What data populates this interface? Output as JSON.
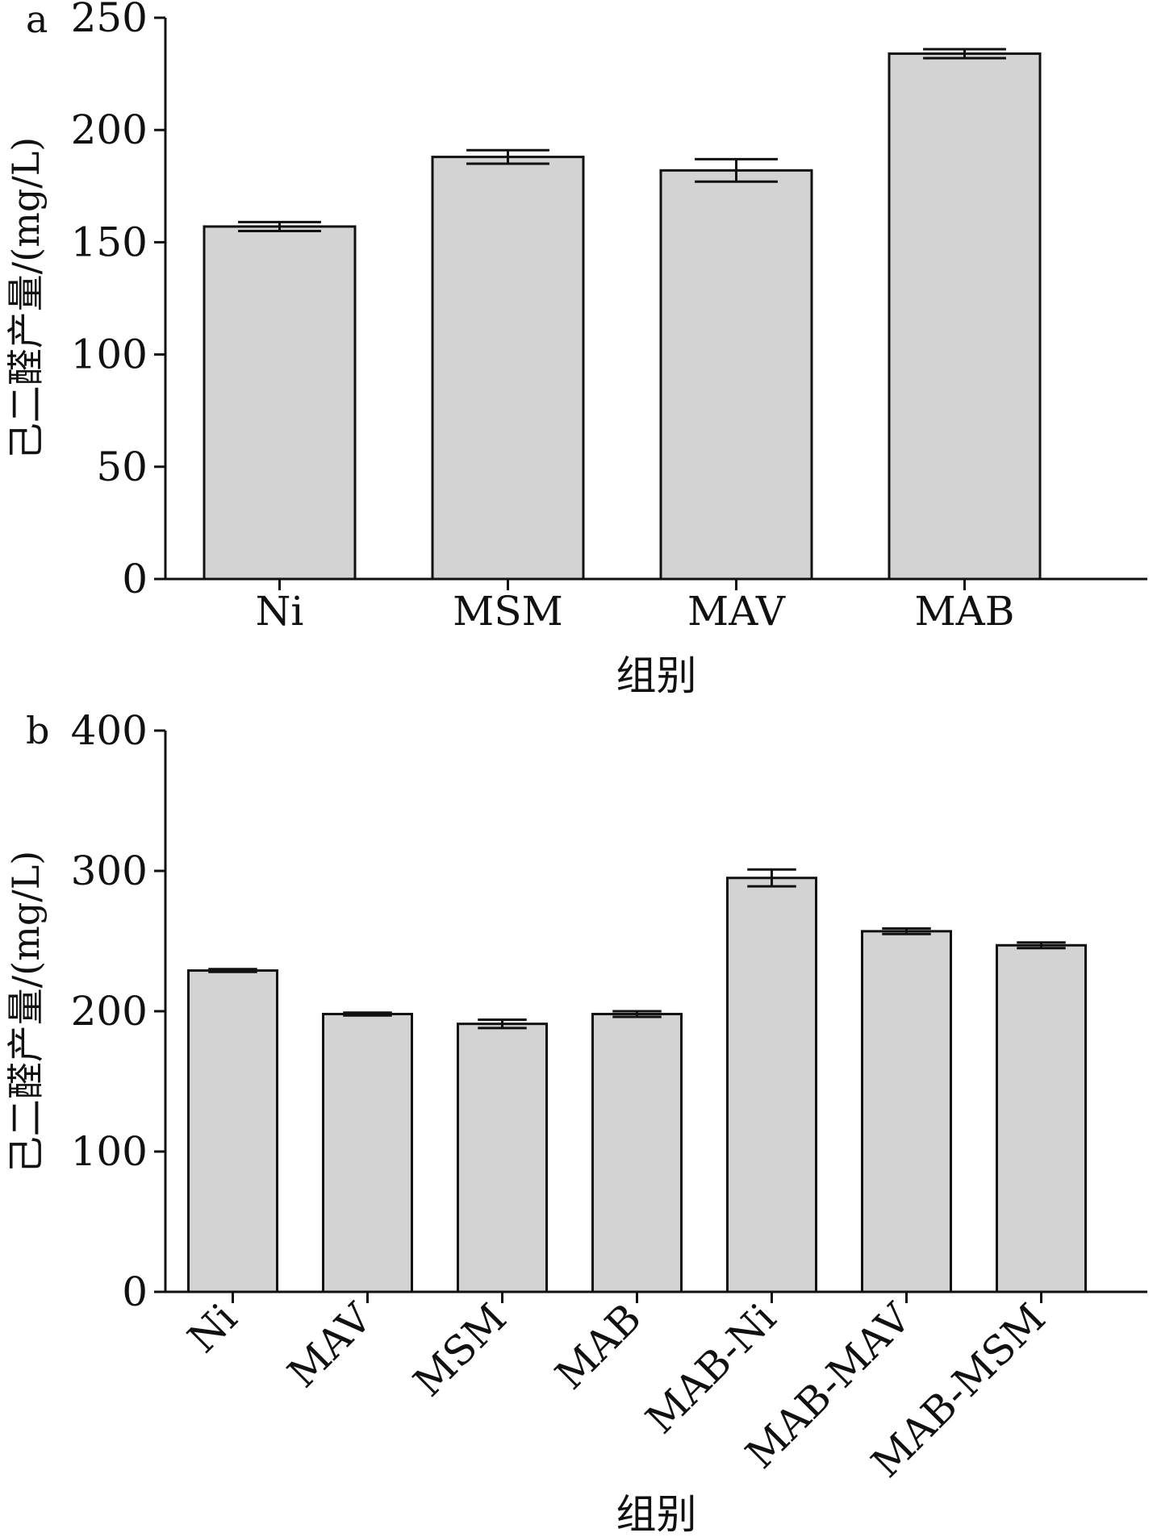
{
  "chart_data": [
    {
      "type": "bar",
      "panel_label": "a",
      "categories": [
        "Ni",
        "MSM",
        "MAV",
        "MAB"
      ],
      "values": [
        157,
        188,
        182,
        234
      ],
      "errors": [
        2,
        3,
        5,
        2
      ],
      "ylabel": "己二醛产量/(mg/L)",
      "xlabel": "组别",
      "ylim": [
        0,
        250
      ],
      "yticks": [
        "0",
        "50",
        "100",
        "150",
        "200",
        "250"
      ],
      "xtick_rotation": 0,
      "bar_color": "#d3d3d3",
      "grid": false
    },
    {
      "type": "bar",
      "panel_label": "b",
      "categories": [
        "Ni",
        "MAV",
        "MSM",
        "MAB",
        "MAB-Ni",
        "MAB-MAV",
        "MAB-MSM"
      ],
      "values": [
        229,
        198,
        191,
        198,
        295,
        257,
        247
      ],
      "errors": [
        1,
        1,
        3,
        2,
        6,
        2,
        2
      ],
      "ylabel": "己二醛产量/(mg/L)",
      "xlabel": "组别",
      "ylim": [
        0,
        400
      ],
      "yticks": [
        "0",
        "100",
        "200",
        "300",
        "400"
      ],
      "xtick_rotation": -45,
      "bar_color": "#d3d3d3",
      "grid": false
    }
  ]
}
